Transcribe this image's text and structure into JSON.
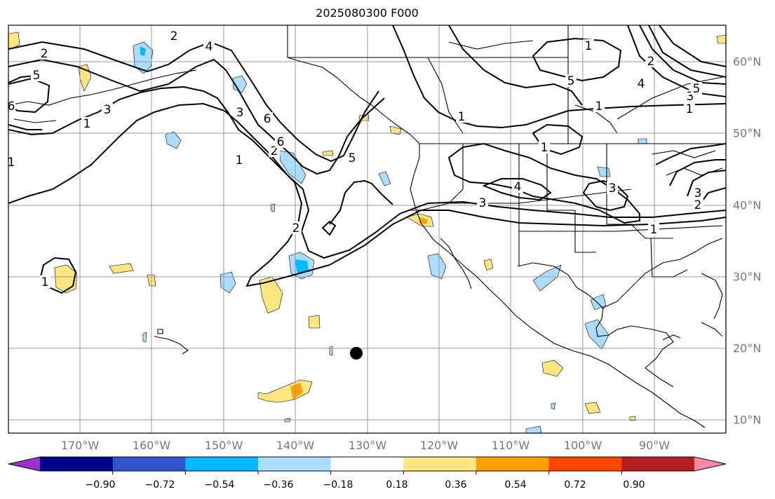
{
  "title": "2025080300 F000",
  "lon_labels": [
    "170°W",
    "160°W",
    "150°W",
    "140°W",
    "130°W",
    "120°W",
    "110°W",
    "100°W",
    "90°W"
  ],
  "lat_labels": [
    "60°N",
    "50°N",
    "40°N",
    "30°N",
    "20°N",
    "10°N"
  ],
  "colorbar": {
    "colors": [
      "#9933cc",
      "#000088",
      "#3355cc",
      "#00bbff",
      "#aaddff",
      "#ffffff",
      "#ffe680",
      "#ffa000",
      "#ff4400",
      "#b02020",
      "#ff88aa"
    ],
    "labels": [
      "−0.90",
      "−0.72",
      "−0.54",
      "−0.36",
      "−0.18",
      "0.18",
      "0.36",
      "0.54",
      "0.72",
      "0.90"
    ]
  },
  "contour_labels": [
    "2",
    "5",
    "6",
    "1",
    "1",
    "1",
    "3",
    "2",
    "6",
    "2",
    "4",
    "3",
    "6",
    "5",
    "2",
    "1",
    "1",
    "4",
    "5",
    "1",
    "1",
    "1",
    "3",
    "1",
    "4",
    "3",
    "3",
    "5",
    "2",
    "3",
    "2",
    "1"
  ],
  "marker": "storm-position-dot"
}
